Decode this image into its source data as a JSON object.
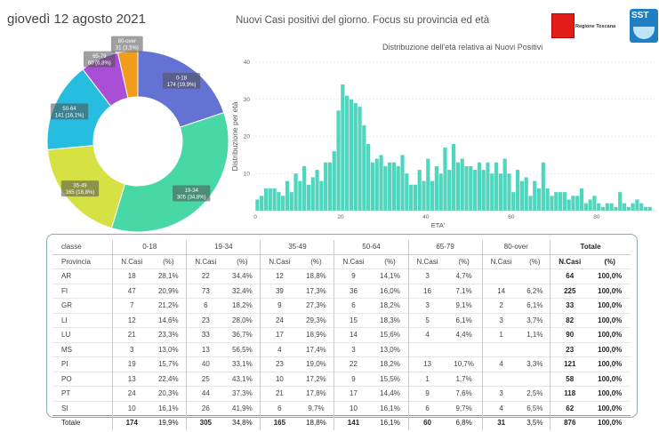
{
  "header": {
    "date": "giovedì 12 agosto 2021",
    "title": "Nuovi Casi positivi del giorno. Focus su provincia ed età",
    "logo_toscana": "Regione Toscana",
    "logo_sst": "SST"
  },
  "colors": {
    "teal": "#4ddbc3",
    "bar": "#4fd6bd"
  },
  "chart_data": [
    {
      "type": "pie",
      "labels": [
        "0-18",
        "19-34",
        "35-49",
        "50-64",
        "65-79",
        "80-over"
      ],
      "values": [
        174,
        305,
        165,
        141,
        60,
        31
      ],
      "percent_labels": [
        "174 (19,9%)",
        "305 (34,8%)",
        "165 (18,8%)",
        "141 (16,1%)",
        "60 (6,8%)",
        "31 (3,5%)"
      ],
      "colors": [
        "#6473d3",
        "#47d8a6",
        "#d6e243",
        "#27bde0",
        "#a84fd6",
        "#f29c1c"
      ],
      "donut": true
    },
    {
      "type": "bar",
      "title": "Distribuzione dell'età relativa ai Nuovi Positivi",
      "xlabel": "ETA'",
      "ylabel": "Distribuzione per età",
      "xlim": [
        0,
        94
      ],
      "ylim": [
        0,
        40
      ],
      "xticks": [
        0,
        20,
        40,
        60,
        80
      ],
      "yticks": [
        10,
        20,
        30,
        40
      ],
      "x": [
        0,
        1,
        2,
        3,
        4,
        5,
        6,
        7,
        8,
        9,
        10,
        11,
        12,
        13,
        14,
        15,
        16,
        17,
        18,
        19,
        20,
        21,
        22,
        23,
        24,
        25,
        26,
        27,
        28,
        29,
        30,
        31,
        32,
        33,
        34,
        35,
        36,
        37,
        38,
        39,
        40,
        41,
        42,
        43,
        44,
        45,
        46,
        47,
        48,
        49,
        50,
        51,
        52,
        53,
        54,
        55,
        56,
        57,
        58,
        59,
        60,
        61,
        62,
        63,
        64,
        65,
        66,
        67,
        68,
        69,
        70,
        71,
        72,
        73,
        74,
        75,
        76,
        77,
        78,
        79,
        80,
        81,
        82,
        83,
        84,
        85,
        86,
        87,
        88,
        89,
        90,
        91,
        92,
        93
      ],
      "values": [
        3,
        4,
        6,
        6,
        6,
        5,
        4,
        8,
        5,
        10,
        8,
        12,
        7,
        9,
        11,
        8,
        13,
        13,
        16,
        27,
        34,
        31,
        30,
        29,
        28,
        23,
        18,
        13,
        14,
        15,
        12,
        13,
        13,
        12,
        15,
        10,
        7,
        7,
        11,
        8,
        14,
        8,
        12,
        10,
        17,
        11,
        18,
        13,
        14,
        12,
        12,
        11,
        13,
        11,
        13,
        10,
        13,
        10,
        14,
        10,
        5,
        11,
        8,
        9,
        4,
        8,
        6,
        13,
        6,
        4,
        5,
        5,
        5,
        3,
        4,
        4,
        6,
        2,
        3,
        4,
        2,
        1,
        2,
        2,
        1,
        5,
        2,
        1,
        2,
        3,
        2,
        1,
        1,
        0
      ]
    }
  ],
  "table": {
    "group_headers": [
      "classe",
      "0-18",
      "19-34",
      "35-49",
      "50-64",
      "65-79",
      "80-over",
      "Totale"
    ],
    "sub_headers": [
      "Provincia",
      "N.Casi",
      "(%)",
      "N.Casi",
      "(%)",
      "N.Casi",
      "(%)",
      "N.Casi",
      "(%)",
      "N.Casi",
      "(%)",
      "N.Casi",
      "(%)",
      "N.Casi",
      "(%)"
    ],
    "rows": [
      [
        "AR",
        "18",
        "28,1%",
        "22",
        "34,4%",
        "12",
        "18,8%",
        "9",
        "14,1%",
        "3",
        "4,7%",
        "",
        "",
        "64",
        "100,0%"
      ],
      [
        "FI",
        "47",
        "20,9%",
        "73",
        "32,4%",
        "39",
        "17,3%",
        "36",
        "16,0%",
        "16",
        "7,1%",
        "14",
        "6,2%",
        "225",
        "100,0%"
      ],
      [
        "GR",
        "7",
        "21,2%",
        "6",
        "18,2%",
        "9",
        "27,3%",
        "6",
        "18,2%",
        "3",
        "9,1%",
        "2",
        "6,1%",
        "33",
        "100,0%"
      ],
      [
        "LI",
        "12",
        "14,6%",
        "23",
        "28,0%",
        "24",
        "29,3%",
        "15",
        "18,3%",
        "5",
        "6,1%",
        "3",
        "3,7%",
        "82",
        "100,0%"
      ],
      [
        "LU",
        "21",
        "23,3%",
        "33",
        "36,7%",
        "17",
        "18,9%",
        "14",
        "15,6%",
        "4",
        "4,4%",
        "1",
        "1,1%",
        "90",
        "100,0%"
      ],
      [
        "MS",
        "3",
        "13,0%",
        "13",
        "56,5%",
        "4",
        "17,4%",
        "3",
        "13,0%",
        "",
        "",
        "",
        "",
        "23",
        "100,0%"
      ],
      [
        "PI",
        "19",
        "15,7%",
        "40",
        "33,1%",
        "23",
        "19,0%",
        "22",
        "18,2%",
        "13",
        "10,7%",
        "4",
        "3,3%",
        "121",
        "100,0%"
      ],
      [
        "PO",
        "13",
        "22,4%",
        "25",
        "43,1%",
        "10",
        "17,2%",
        "9",
        "15,5%",
        "1",
        "1,7%",
        "",
        "",
        "58",
        "100,0%"
      ],
      [
        "PT",
        "24",
        "20,3%",
        "44",
        "37,3%",
        "21",
        "17,8%",
        "17",
        "14,4%",
        "9",
        "7,6%",
        "3",
        "2,5%",
        "118",
        "100,0%"
      ],
      [
        "SI",
        "10",
        "16,1%",
        "26",
        "41,9%",
        "6",
        "9,7%",
        "10",
        "16,1%",
        "6",
        "9,7%",
        "4",
        "6,5%",
        "62",
        "100,0%"
      ]
    ],
    "total": [
      "Totale",
      "174",
      "19,9%",
      "305",
      "34,8%",
      "165",
      "18,8%",
      "141",
      "16,1%",
      "60",
      "6,8%",
      "31",
      "3,5%",
      "876",
      "100,0%"
    ]
  }
}
